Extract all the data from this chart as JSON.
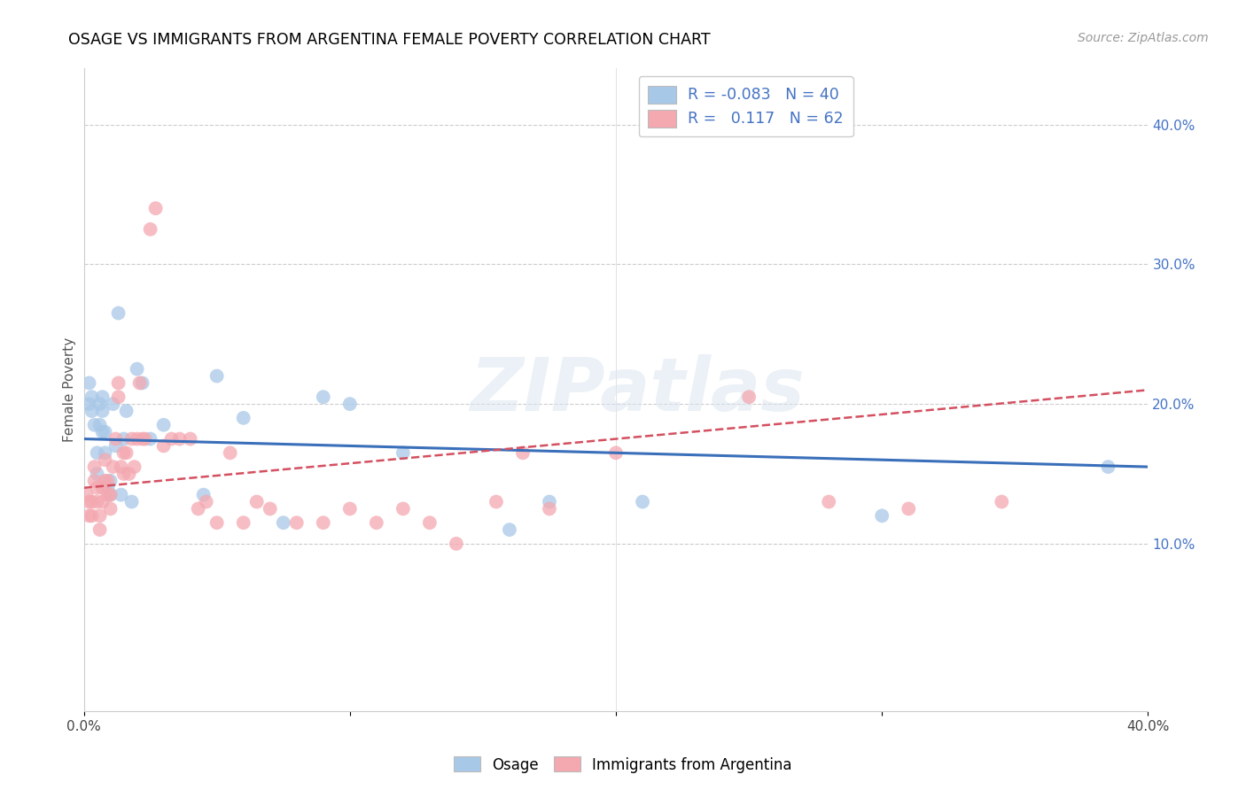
{
  "title": "OSAGE VS IMMIGRANTS FROM ARGENTINA FEMALE POVERTY CORRELATION CHART",
  "source": "Source: ZipAtlas.com",
  "ylabel": "Female Poverty",
  "xlim": [
    0.0,
    0.4
  ],
  "ylim": [
    -0.02,
    0.44
  ],
  "legend_R_osage": "-0.083",
  "legend_N_osage": "40",
  "legend_R_argentina": "0.117",
  "legend_N_argentina": "62",
  "osage_color": "#a8c8e8",
  "argentina_color": "#f4a8b0",
  "osage_line_color": "#3a6fba",
  "argentina_line_color": "#d45060",
  "watermark": "ZIPatlas",
  "osage_x": [
    0.002,
    0.002,
    0.003,
    0.003,
    0.004,
    0.005,
    0.005,
    0.006,
    0.006,
    0.007,
    0.007,
    0.007,
    0.008,
    0.008,
    0.009,
    0.01,
    0.01,
    0.011,
    0.012,
    0.013,
    0.014,
    0.015,
    0.016,
    0.018,
    0.02,
    0.022,
    0.025,
    0.03,
    0.045,
    0.05,
    0.06,
    0.075,
    0.09,
    0.1,
    0.12,
    0.16,
    0.175,
    0.21,
    0.3,
    0.385
  ],
  "osage_y": [
    0.2,
    0.215,
    0.195,
    0.205,
    0.185,
    0.165,
    0.15,
    0.2,
    0.185,
    0.205,
    0.195,
    0.18,
    0.18,
    0.165,
    0.14,
    0.145,
    0.135,
    0.2,
    0.17,
    0.265,
    0.135,
    0.175,
    0.195,
    0.13,
    0.225,
    0.215,
    0.175,
    0.185,
    0.135,
    0.22,
    0.19,
    0.115,
    0.205,
    0.2,
    0.165,
    0.11,
    0.13,
    0.13,
    0.12,
    0.155
  ],
  "argentina_x": [
    0.001,
    0.002,
    0.002,
    0.003,
    0.003,
    0.004,
    0.004,
    0.005,
    0.005,
    0.006,
    0.006,
    0.007,
    0.007,
    0.008,
    0.008,
    0.009,
    0.009,
    0.01,
    0.01,
    0.011,
    0.012,
    0.013,
    0.013,
    0.014,
    0.015,
    0.015,
    0.016,
    0.017,
    0.018,
    0.019,
    0.02,
    0.021,
    0.022,
    0.023,
    0.025,
    0.027,
    0.03,
    0.033,
    0.036,
    0.04,
    0.043,
    0.046,
    0.05,
    0.055,
    0.06,
    0.065,
    0.07,
    0.08,
    0.09,
    0.1,
    0.11,
    0.12,
    0.13,
    0.14,
    0.155,
    0.165,
    0.175,
    0.2,
    0.25,
    0.28,
    0.31,
    0.345
  ],
  "argentina_y": [
    0.135,
    0.13,
    0.12,
    0.13,
    0.12,
    0.155,
    0.145,
    0.14,
    0.13,
    0.12,
    0.11,
    0.14,
    0.13,
    0.16,
    0.145,
    0.145,
    0.135,
    0.135,
    0.125,
    0.155,
    0.175,
    0.215,
    0.205,
    0.155,
    0.165,
    0.15,
    0.165,
    0.15,
    0.175,
    0.155,
    0.175,
    0.215,
    0.175,
    0.175,
    0.325,
    0.34,
    0.17,
    0.175,
    0.175,
    0.175,
    0.125,
    0.13,
    0.115,
    0.165,
    0.115,
    0.13,
    0.125,
    0.115,
    0.115,
    0.125,
    0.115,
    0.125,
    0.115,
    0.1,
    0.13,
    0.165,
    0.125,
    0.165,
    0.205,
    0.13,
    0.125,
    0.13
  ]
}
